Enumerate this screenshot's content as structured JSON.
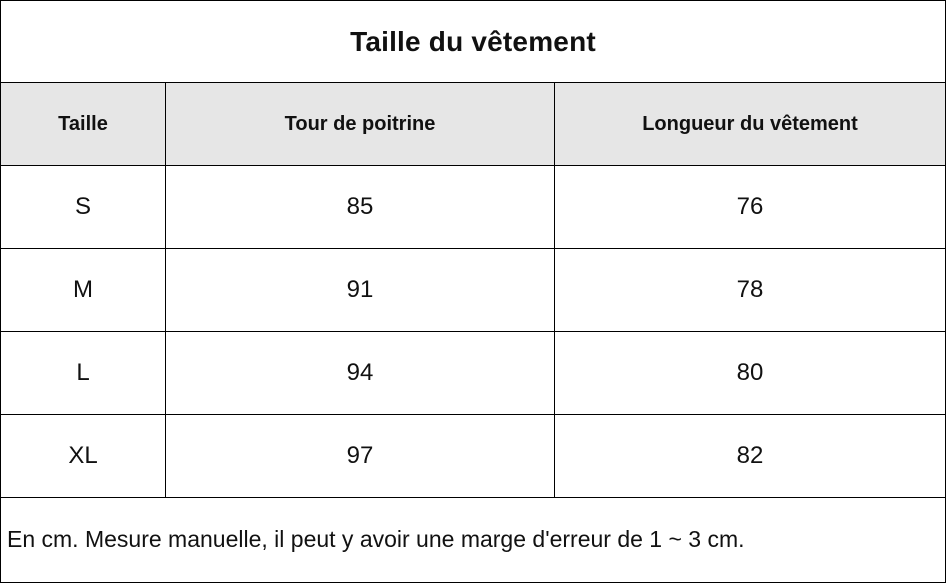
{
  "title": "Taille du vêtement",
  "columns": [
    "Taille",
    "Tour de poitrine",
    "Longueur du vêtement"
  ],
  "rows": [
    [
      "S",
      "85",
      "76"
    ],
    [
      "M",
      "91",
      "78"
    ],
    [
      "L",
      "94",
      "80"
    ],
    [
      "XL",
      "97",
      "82"
    ]
  ],
  "note": "En cm.  Mesure manuelle, il peut y avoir une marge d'erreur de 1 ~ 3 cm.",
  "colors": {
    "header_background": "#e6e6e6",
    "border": "#000000",
    "text": "#111111"
  }
}
